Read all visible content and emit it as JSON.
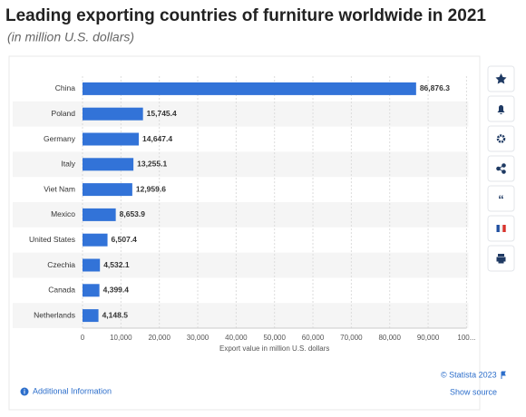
{
  "chart_data": {
    "type": "hbar",
    "title": "Leading exporting countries of furniture worldwide in 2021",
    "subtitle": "(in million U.S. dollars)",
    "xlabel": "Export value in million U.S. dollars",
    "categories": [
      "China",
      "Poland",
      "Germany",
      "Italy",
      "Viet Nam",
      "Mexico",
      "United States",
      "Czechia",
      "Canada",
      "Netherlands"
    ],
    "values": [
      86876.3,
      15745.4,
      14647.4,
      13255.1,
      12959.6,
      8653.9,
      6507.4,
      4532.1,
      4399.4,
      4148.5
    ],
    "value_labels": [
      "86,876.3",
      "15,745.4",
      "14,647.4",
      "13,255.1",
      "12,959.6",
      "8,653.9",
      "6,507.4",
      "4,532.1",
      "4,399.4",
      "4,148.5"
    ],
    "color": "#3273d8",
    "xlim": [
      0,
      100000
    ],
    "xticks": [
      0,
      {
        "value": 10000,
        "label": "10,000"
      },
      {
        "value": 20000,
        "label": "20,000"
      },
      {
        "value": 30000,
        "label": "30,000"
      },
      {
        "value": 40000,
        "label": "40,000"
      },
      {
        "value": 50000,
        "label": "50,000"
      },
      {
        "value": 60000,
        "label": "60,000"
      },
      {
        "value": 70000,
        "label": "70,000"
      },
      {
        "value": 80000,
        "label": "80,000"
      },
      {
        "value": 90000,
        "label": "90,000"
      },
      {
        "value": 100000,
        "label": "100..."
      }
    ],
    "grid": true
  },
  "footer": {
    "copyright": "© Statista 2023",
    "source": "Show source",
    "info": "Additional Information"
  }
}
